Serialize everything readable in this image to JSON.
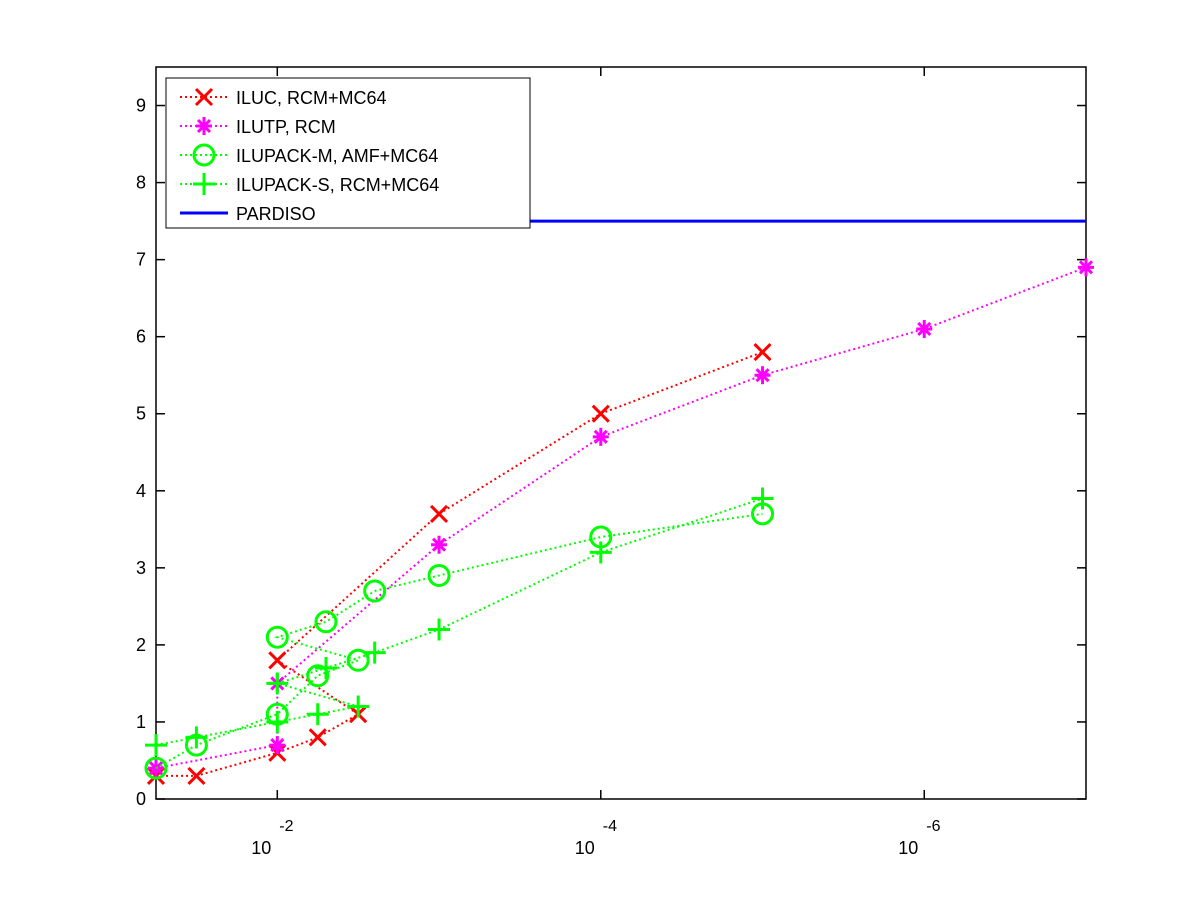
{
  "chart_data": {
    "type": "line",
    "title": "",
    "xlabel": "",
    "ylabel": "",
    "x_scale": "log-reversed",
    "x_axis_label_values": [
      0.01,
      0.0001,
      1e-06
    ],
    "x_tick_labels": [
      {
        "base": "10",
        "exp": "-2"
      },
      {
        "base": "10",
        "exp": "-4"
      },
      {
        "base": "10",
        "exp": "-6"
      }
    ],
    "xlim": [
      0.05623,
      1e-07
    ],
    "ylim": [
      0,
      9.5
    ],
    "y_ticks": [
      0,
      1,
      2,
      3,
      4,
      5,
      6,
      7,
      8,
      9
    ],
    "y_tick_labels": [
      "0",
      "1",
      "2",
      "3",
      "4",
      "5",
      "6",
      "7",
      "8",
      "9"
    ],
    "grid": false,
    "legend_position": "top-left",
    "series": [
      {
        "name": "ILUC, RCM+MC64",
        "color": "#ff0000",
        "marker": "x",
        "line": "dotted",
        "points": [
          [
            0.05623,
            0.3
          ],
          [
            0.03162,
            0.3
          ],
          [
            0.01,
            0.6
          ],
          [
            0.005623,
            0.8
          ],
          [
            0.003162,
            1.1
          ],
          [
            0.01,
            1.8
          ],
          [
            0.001,
            3.7
          ],
          [
            0.0001,
            5.0
          ],
          [
            1e-05,
            5.8
          ]
        ]
      },
      {
        "name": "ILUTP, RCM",
        "color": "#ff00ff",
        "marker": "star",
        "line": "dotted",
        "points": [
          [
            0.05623,
            0.4
          ],
          [
            0.01,
            0.7
          ],
          [
            0.01,
            1.5
          ],
          [
            0.001,
            3.3
          ],
          [
            0.0001,
            4.7
          ],
          [
            1e-05,
            5.5
          ],
          [
            1e-06,
            6.1
          ],
          [
            1e-07,
            6.9
          ]
        ]
      },
      {
        "name": "ILUPACK-M, AMF+MC64",
        "color": "#00ff00",
        "marker": "circle",
        "line": "dotted",
        "points": [
          [
            0.05623,
            0.4
          ],
          [
            0.03162,
            0.7
          ],
          [
            0.01,
            1.1
          ],
          [
            0.005623,
            1.6
          ],
          [
            0.003162,
            1.8
          ],
          [
            0.01,
            2.1
          ],
          [
            0.005,
            2.3
          ],
          [
            0.0025,
            2.7
          ],
          [
            0.001,
            2.9
          ],
          [
            0.0001,
            3.4
          ],
          [
            1e-05,
            3.7
          ]
        ]
      },
      {
        "name": "ILUPACK-S, RCM+MC64",
        "color": "#00ff00",
        "marker": "plus",
        "line": "dotted",
        "points": [
          [
            0.05623,
            0.7
          ],
          [
            0.03162,
            0.8
          ],
          [
            0.01,
            1.0
          ],
          [
            0.005623,
            1.1
          ],
          [
            0.003162,
            1.2
          ],
          [
            0.01,
            1.5
          ],
          [
            0.005,
            1.7
          ],
          [
            0.0025,
            1.9
          ],
          [
            0.001,
            2.2
          ],
          [
            0.0001,
            3.2
          ],
          [
            1e-05,
            3.9
          ]
        ]
      },
      {
        "name": "PARDISO",
        "color": "#0000ff",
        "marker": "none",
        "line": "solid",
        "points": [
          [
            0.001,
            7.5
          ],
          [
            1e-07,
            7.5
          ]
        ]
      }
    ]
  }
}
